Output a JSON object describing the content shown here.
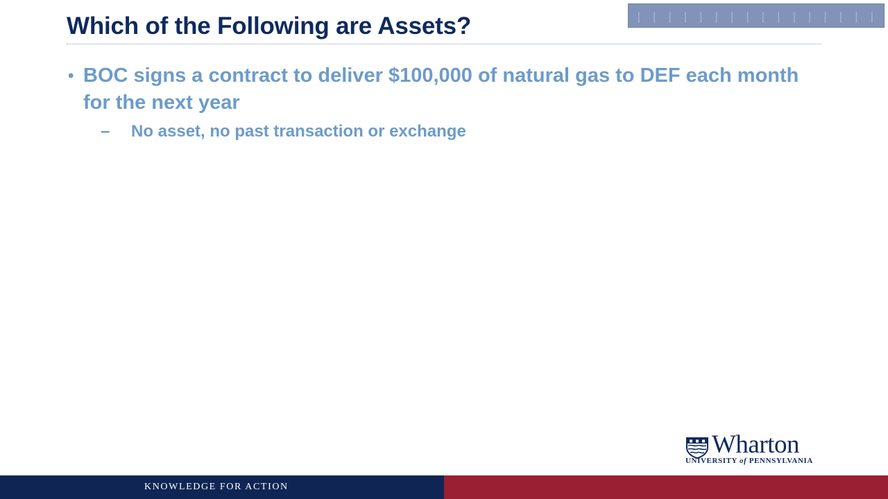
{
  "slide": {
    "title": "Which of the Following are Assets?",
    "bullets": [
      {
        "text": "BOC signs a contract to deliver $100,000 of natural gas to DEF each month for the next year",
        "subbullets": [
          {
            "marker": "–",
            "text": "No asset, no past transaction or exchange"
          }
        ]
      }
    ],
    "bullet_marker": "•"
  },
  "logo": {
    "wordmark": "Wharton",
    "subline_prefix": "UNIVERSITY",
    "subline_of": "of",
    "subline_suffix": "PENNSYLVANIA"
  },
  "footer": {
    "tagline": "KNOWLEDGE FOR ACTION"
  },
  "colors": {
    "title": "#0f2a5e",
    "body": "#6d9bc9",
    "footer_navy": "#0f2554",
    "footer_red": "#9a1f32",
    "header_block": "#8193b8"
  }
}
